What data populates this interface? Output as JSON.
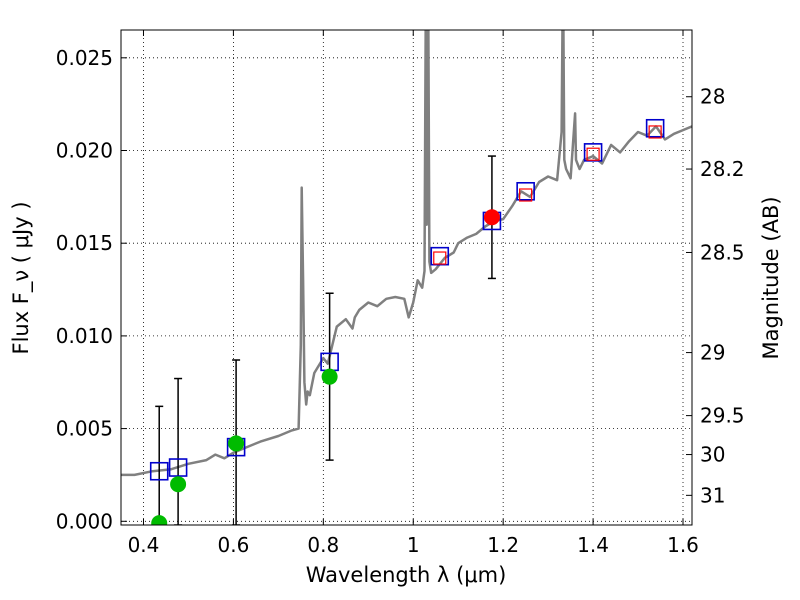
{
  "chart_data": {
    "type": "scatter",
    "title": "",
    "xlabel": "Wavelength  λ (μm)",
    "ylabel": "Flux  F_ν  ( μJy )",
    "ylabel_right": "Magnitude (AB)",
    "xlim": [
      0.35,
      1.62
    ],
    "ylim": [
      -0.0002,
      0.0265
    ],
    "grid": true,
    "xticks": [
      0.4,
      0.6,
      0.8,
      1.0,
      1.2,
      1.4,
      1.6
    ],
    "xtick_labels": [
      "0.4",
      "0.6",
      "0.8",
      "1",
      "1.2",
      "1.4",
      "1.6"
    ],
    "yticks": [
      0.0,
      0.005,
      0.01,
      0.015,
      0.02,
      0.025
    ],
    "ytick_labels": [
      "0.000",
      "0.005",
      "0.010",
      "0.015",
      "0.020",
      "0.025"
    ],
    "right_ticks": [
      {
        "label": "28",
        "flux": 0.0229
      },
      {
        "label": "28.2",
        "flux": 0.019
      },
      {
        "label": "28.5",
        "flux": 0.0145
      },
      {
        "label": "29",
        "flux": 0.0091
      },
      {
        "label": "29.5",
        "flux": 0.0057
      },
      {
        "label": "30",
        "flux": 0.0036
      },
      {
        "label": "31",
        "flux": 0.0014
      }
    ],
    "sed_model": {
      "color": "#808080",
      "x": [
        0.35,
        0.38,
        0.42,
        0.46,
        0.5,
        0.54,
        0.56,
        0.58,
        0.6,
        0.63,
        0.66,
        0.7,
        0.73,
        0.745,
        0.75,
        0.752,
        0.755,
        0.758,
        0.762,
        0.765,
        0.77,
        0.78,
        0.8,
        0.81,
        0.83,
        0.85,
        0.865,
        0.87,
        0.88,
        0.9,
        0.92,
        0.94,
        0.96,
        0.98,
        0.99,
        1.0,
        1.01,
        1.02,
        1.025,
        1.028,
        1.03,
        1.033,
        1.036,
        1.04,
        1.05,
        1.07,
        1.09,
        1.1,
        1.12,
        1.14,
        1.16,
        1.18,
        1.2,
        1.22,
        1.24,
        1.26,
        1.28,
        1.3,
        1.32,
        1.33,
        1.333,
        1.336,
        1.34,
        1.35,
        1.36,
        1.362,
        1.365,
        1.37,
        1.38,
        1.4,
        1.42,
        1.44,
        1.46,
        1.48,
        1.5,
        1.52,
        1.54,
        1.56,
        1.58,
        1.6,
        1.62
      ],
      "y": [
        0.0025,
        0.0025,
        0.0027,
        0.0028,
        0.0031,
        0.0033,
        0.0036,
        0.0034,
        0.0037,
        0.004,
        0.0043,
        0.0046,
        0.0049,
        0.005,
        0.0095,
        0.018,
        0.013,
        0.0075,
        0.0063,
        0.007,
        0.0068,
        0.008,
        0.0088,
        0.0085,
        0.0105,
        0.0109,
        0.0104,
        0.011,
        0.0114,
        0.0118,
        0.0116,
        0.012,
        0.0121,
        0.012,
        0.011,
        0.0118,
        0.013,
        0.0126,
        0.0135,
        0.028,
        0.016,
        0.03,
        0.014,
        0.0134,
        0.0136,
        0.0142,
        0.0145,
        0.015,
        0.0153,
        0.0155,
        0.0159,
        0.0162,
        0.0163,
        0.017,
        0.0178,
        0.0175,
        0.0183,
        0.0186,
        0.0184,
        0.021,
        0.03,
        0.0195,
        0.019,
        0.0185,
        0.022,
        0.0195,
        0.0193,
        0.019,
        0.0195,
        0.0197,
        0.0193,
        0.0203,
        0.0199,
        0.0205,
        0.021,
        0.0208,
        0.0213,
        0.0206,
        0.0209,
        0.0211,
        0.0213
      ]
    },
    "model_photometry": {
      "color": "#0000cc",
      "marker": "open-square",
      "points": [
        [
          0.435,
          0.0027
        ],
        [
          0.477,
          0.0029
        ],
        [
          0.606,
          0.004
        ],
        [
          0.814,
          0.0086
        ],
        [
          1.059,
          0.0143
        ],
        [
          1.175,
          0.0162
        ],
        [
          1.25,
          0.0178
        ],
        [
          1.4,
          0.0199
        ],
        [
          1.538,
          0.0212
        ]
      ]
    },
    "observed_ir": {
      "color": "#ff0000",
      "marker": "open-square",
      "points": [
        [
          1.059,
          0.0142
        ],
        [
          1.25,
          0.0176
        ],
        [
          1.4,
          0.0198
        ],
        [
          1.538,
          0.021
        ]
      ]
    },
    "observed_optical": {
      "color": "#00bb00",
      "marker": "filled-circle",
      "points": [
        [
          0.435,
          -0.0001
        ],
        [
          0.477,
          0.002
        ],
        [
          0.606,
          0.0042
        ],
        [
          0.814,
          0.0078
        ]
      ],
      "errors": [
        [
          0.435,
          -0.0002,
          0.0062
        ],
        [
          0.477,
          -0.0002,
          0.0077
        ],
        [
          0.606,
          -0.0002,
          0.0087
        ],
        [
          0.814,
          0.0033,
          0.0123
        ]
      ]
    },
    "observed_jband": {
      "color": "#ff0000",
      "marker": "filled-circle",
      "points": [
        [
          1.175,
          0.0164
        ]
      ],
      "errors": [
        [
          1.175,
          0.0131,
          0.0197
        ]
      ]
    }
  }
}
